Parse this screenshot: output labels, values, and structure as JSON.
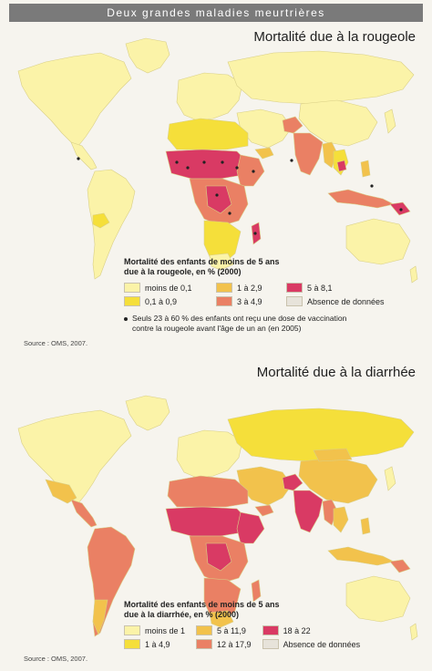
{
  "header": {
    "title": "Deux grandes maladies meurtrières"
  },
  "maps": [
    {
      "title": "Mortalité due à la rougeole",
      "legend_title_line1": "Mortalité des enfants de moins de 5 ans",
      "legend_title_line2": "due à la rougeole, en % (2000)",
      "legend": [
        {
          "label": "moins de 0,1",
          "color": "#fbf3a8"
        },
        {
          "label": "1 à 2,9",
          "color": "#f2c24c"
        },
        {
          "label": "5 à 8,1",
          "color": "#d93a64"
        },
        {
          "label": "0,1 à 0,9",
          "color": "#f5df3a"
        },
        {
          "label": "3 à 4,9",
          "color": "#ea8064"
        },
        {
          "label": "Absence de données",
          "color": "#e7e3da"
        }
      ],
      "note_line1": "Seuls 23 à 60 % des enfants ont reçu une dose de vaccination",
      "note_line2": "contre la rougeole avant l'âge de un an (en 2005)",
      "source": "Source : OMS, 2007."
    },
    {
      "title": "Mortalité due à la diarrhée",
      "legend_title_line1": "Mortalité des enfants de moins de 5 ans",
      "legend_title_line2": "due à la diarrhée, en % (2000)",
      "legend": [
        {
          "label": "moins de 1",
          "color": "#fbf3a8"
        },
        {
          "label": "5 à 11,9",
          "color": "#f2c24c"
        },
        {
          "label": "18 à 22",
          "color": "#d93a64"
        },
        {
          "label": "1 à 4,9",
          "color": "#f5df3a"
        },
        {
          "label": "12 à 17,9",
          "color": "#ea8064"
        },
        {
          "label": "Absence de données",
          "color": "#e7e3da"
        }
      ],
      "source": "Source : OMS, 2007."
    }
  ]
}
